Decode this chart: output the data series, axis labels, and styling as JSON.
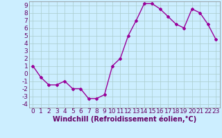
{
  "x": [
    0,
    1,
    2,
    3,
    4,
    5,
    6,
    7,
    8,
    9,
    10,
    11,
    12,
    13,
    14,
    15,
    16,
    17,
    18,
    19,
    20,
    21,
    22,
    23
  ],
  "y": [
    1.0,
    -0.5,
    -1.5,
    -1.5,
    -1.0,
    -2.0,
    -2.0,
    -3.3,
    -3.3,
    -2.8,
    1.0,
    2.0,
    5.0,
    7.0,
    9.2,
    9.2,
    8.5,
    7.5,
    6.5,
    6.0,
    8.5,
    8.0,
    6.5,
    4.5
  ],
  "line_color": "#990099",
  "marker": "D",
  "marker_size": 2.0,
  "bg_color": "#cceeff",
  "grid_color": "#aacccc",
  "xlabel": "Windchill (Refroidissement éolien,°C)",
  "xlim": [
    -0.5,
    23.5
  ],
  "ylim": [
    -4.5,
    9.5
  ],
  "yticks": [
    -4,
    -3,
    -2,
    -1,
    0,
    1,
    2,
    3,
    4,
    5,
    6,
    7,
    8,
    9
  ],
  "xticks": [
    0,
    1,
    2,
    3,
    4,
    5,
    6,
    7,
    8,
    9,
    10,
    11,
    12,
    13,
    14,
    15,
    16,
    17,
    18,
    19,
    20,
    21,
    22,
    23
  ],
  "xlabel_fontsize": 7.0,
  "tick_fontsize": 6.5,
  "line_width": 1.0
}
